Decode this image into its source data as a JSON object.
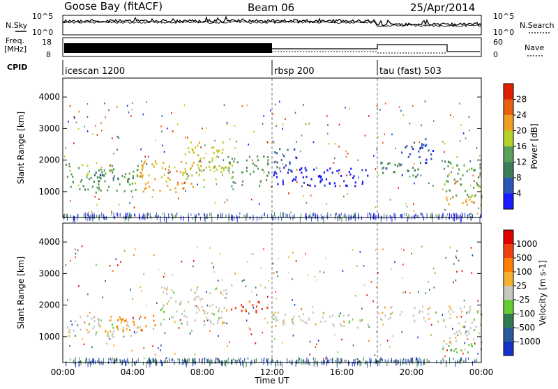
{
  "header": {
    "radar_title": "Goose Bay (fitACF)",
    "beam": "Beam 06",
    "date": "25/Apr/2014"
  },
  "strip_labels": {
    "nsky": "N.Sky",
    "nsearch": "N.Search",
    "freq": "Freq.",
    "freq_unit": "[MHz]",
    "nave": "Nave",
    "cpid": "CPID",
    "noise_ticks_left": [
      "10^5",
      "10^0"
    ],
    "noise_ticks_right": [
      "10^5",
      "10^0"
    ],
    "freq_ticks": [
      "18",
      "8"
    ],
    "nave_ticks": [
      "60",
      "0"
    ]
  },
  "chart_data": [
    {
      "type": "line",
      "name": "noise",
      "series": [
        {
          "name": "N.Sky"
        },
        {
          "name": "N.Search"
        }
      ]
    },
    {
      "type": "line",
      "name": "freq_nave",
      "series": [
        {
          "name": "Freq.",
          "unit": "MHz"
        },
        {
          "name": "Nave"
        }
      ],
      "ylim_left": [
        8,
        18
      ],
      "ylim_right": [
        0,
        60
      ]
    },
    {
      "type": "table",
      "name": "cpid",
      "segments": [
        {
          "label": "icescan 1200",
          "start": "00:00",
          "end": "12:00"
        },
        {
          "label": "rbsp 200",
          "start": "12:00",
          "end": "18:00"
        },
        {
          "label": "tau (fast) 503",
          "start": "18:00",
          "end": "24:00"
        }
      ]
    },
    {
      "type": "heatmap",
      "name": "power",
      "ylabel": "Slant Range [km]",
      "xlabel": "Time UT",
      "xlim": [
        "00:00",
        "24:00"
      ],
      "ylim": [
        180,
        4600
      ],
      "yticks": [
        "1000",
        "2000",
        "3000",
        "4000"
      ],
      "colorbar": {
        "label": "Power [dB]",
        "ticks": [
          "4",
          "8",
          "12",
          "16",
          "20",
          "24",
          "28"
        ],
        "colors": [
          "#1a1aff",
          "#2c56b8",
          "#3f7d58",
          "#5aa05a",
          "#b8d02a",
          "#f0a020",
          "#e86010",
          "#e02000"
        ]
      },
      "regions": [
        {
          "t": [
            0.2,
            4.4
          ],
          "r": [
            1000,
            1900
          ],
          "cls": 3
        },
        {
          "t": [
            4.4,
            7.6
          ],
          "r": [
            1000,
            2000
          ],
          "cls": 5
        },
        {
          "t": [
            1.6,
            3.8
          ],
          "r": [
            1300,
            1700
          ],
          "cls": 2
        },
        {
          "t": [
            6.8,
            9.4
          ],
          "r": [
            1400,
            2600
          ],
          "cls": 4
        },
        {
          "t": [
            9.4,
            11.8
          ],
          "r": [
            1200,
            2200
          ],
          "cls": 3
        },
        {
          "t": [
            12.0,
            17.8
          ],
          "r": [
            1200,
            1800
          ],
          "cls": 0
        },
        {
          "t": [
            12.0,
            13.5
          ],
          "r": [
            1600,
            2400
          ],
          "cls": 1
        },
        {
          "t": [
            18.0,
            20.8
          ],
          "r": [
            1500,
            2000
          ],
          "cls": 2
        },
        {
          "t": [
            19.4,
            21.2
          ],
          "r": [
            1900,
            2700
          ],
          "cls": 1
        },
        {
          "t": [
            21.8,
            24.0
          ],
          "r": [
            800,
            2000
          ],
          "cls": 3
        },
        {
          "t": [
            21.8,
            24.0
          ],
          "r": [
            600,
            900
          ],
          "cls": 5
        }
      ]
    },
    {
      "type": "heatmap",
      "name": "velocity",
      "ylabel": "Slant Range [km]",
      "xlabel": "Time UT",
      "xlim": [
        "00:00",
        "24:00"
      ],
      "ylim": [
        180,
        4600
      ],
      "xticks": [
        "00:00",
        "04:00",
        "08:00",
        "12:00",
        "16:00",
        "20:00",
        "00:00"
      ],
      "yticks": [
        "1000",
        "2000",
        "3000",
        "4000"
      ],
      "colorbar": {
        "label": "Velocity [m s-1]",
        "ticks": [
          "1000",
          "500",
          "100",
          "25",
          "-25",
          "-100",
          "-500",
          "-1000"
        ],
        "colors": [
          "#1432c8",
          "#2a5a9a",
          "#2f7a50",
          "#66cc33",
          "#c8c8c0",
          "#f5b030",
          "#ff8000",
          "#f04010",
          "#e00000"
        ]
      },
      "regions": [
        {
          "t": [
            0.2,
            4.4
          ],
          "r": [
            1000,
            1700
          ],
          "cls": 4
        },
        {
          "t": [
            3.0,
            5.5
          ],
          "r": [
            1200,
            1700
          ],
          "cls": 6
        },
        {
          "t": [
            5.5,
            9.5
          ],
          "r": [
            1400,
            2600
          ],
          "cls": 4
        },
        {
          "t": [
            9.6,
            11.8
          ],
          "r": [
            1800,
            2200
          ],
          "cls": 7
        },
        {
          "t": [
            12.0,
            17.8
          ],
          "r": [
            1300,
            1800
          ],
          "cls": 4
        },
        {
          "t": [
            18.0,
            21.5
          ],
          "r": [
            1500,
            2000
          ],
          "cls": 4
        },
        {
          "t": [
            21.8,
            24.0
          ],
          "r": [
            800,
            2000
          ],
          "cls": 4
        },
        {
          "t": [
            21.6,
            24.0
          ],
          "r": [
            500,
            800
          ],
          "cls": 3
        }
      ]
    }
  ]
}
